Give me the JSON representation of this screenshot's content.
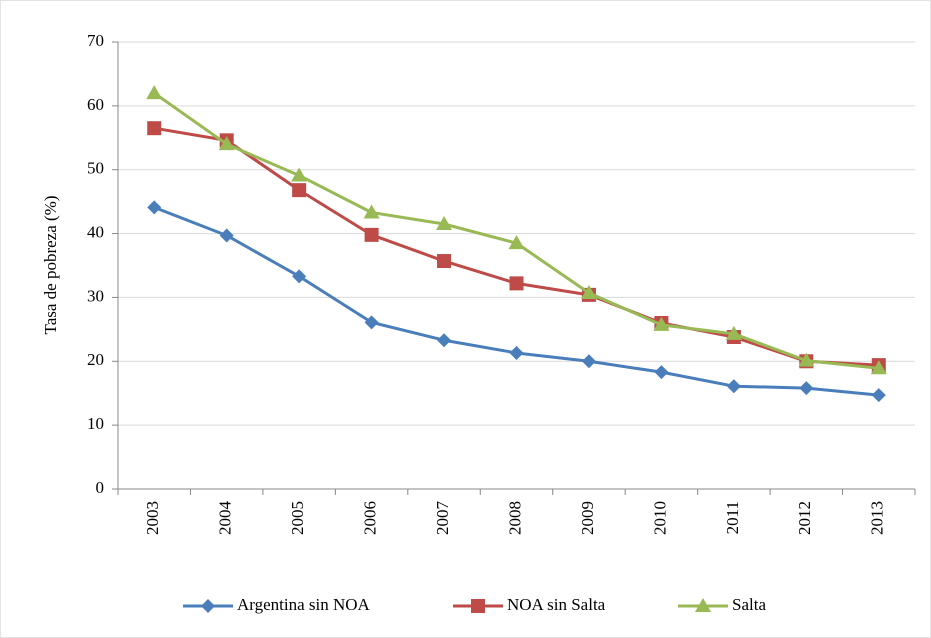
{
  "chart_data": {
    "type": "line",
    "y_label": "Tasa de pobreza (%)",
    "categories": [
      "2003",
      "2004",
      "2005",
      "2006",
      "2007",
      "2008",
      "2009",
      "2010",
      "2011",
      "2012",
      "2013"
    ],
    "series": [
      {
        "name": "Argentina sin NOA",
        "color": "#4a7ebb",
        "marker": "diamond",
        "values": [
          44.1,
          39.7,
          33.3,
          26.1,
          23.3,
          21.3,
          20.0,
          18.3,
          16.1,
          15.8,
          14.7
        ]
      },
      {
        "name": "NOA sin Salta",
        "color": "#be4b48",
        "marker": "square",
        "values": [
          56.5,
          54.6,
          46.8,
          39.8,
          35.7,
          32.2,
          30.4,
          26.0,
          23.8,
          20.0,
          19.4
        ]
      },
      {
        "name": "Salta",
        "color": "#98b954",
        "marker": "triangle",
        "values": [
          62.0,
          54.0,
          49.1,
          43.3,
          41.5,
          38.5,
          30.7,
          25.7,
          24.3,
          20.1,
          18.9
        ]
      }
    ],
    "ylim": [
      0,
      70
    ],
    "yticks": [
      0,
      10,
      20,
      30,
      40,
      50,
      60,
      70
    ],
    "grid": true,
    "legend": "bottom"
  }
}
